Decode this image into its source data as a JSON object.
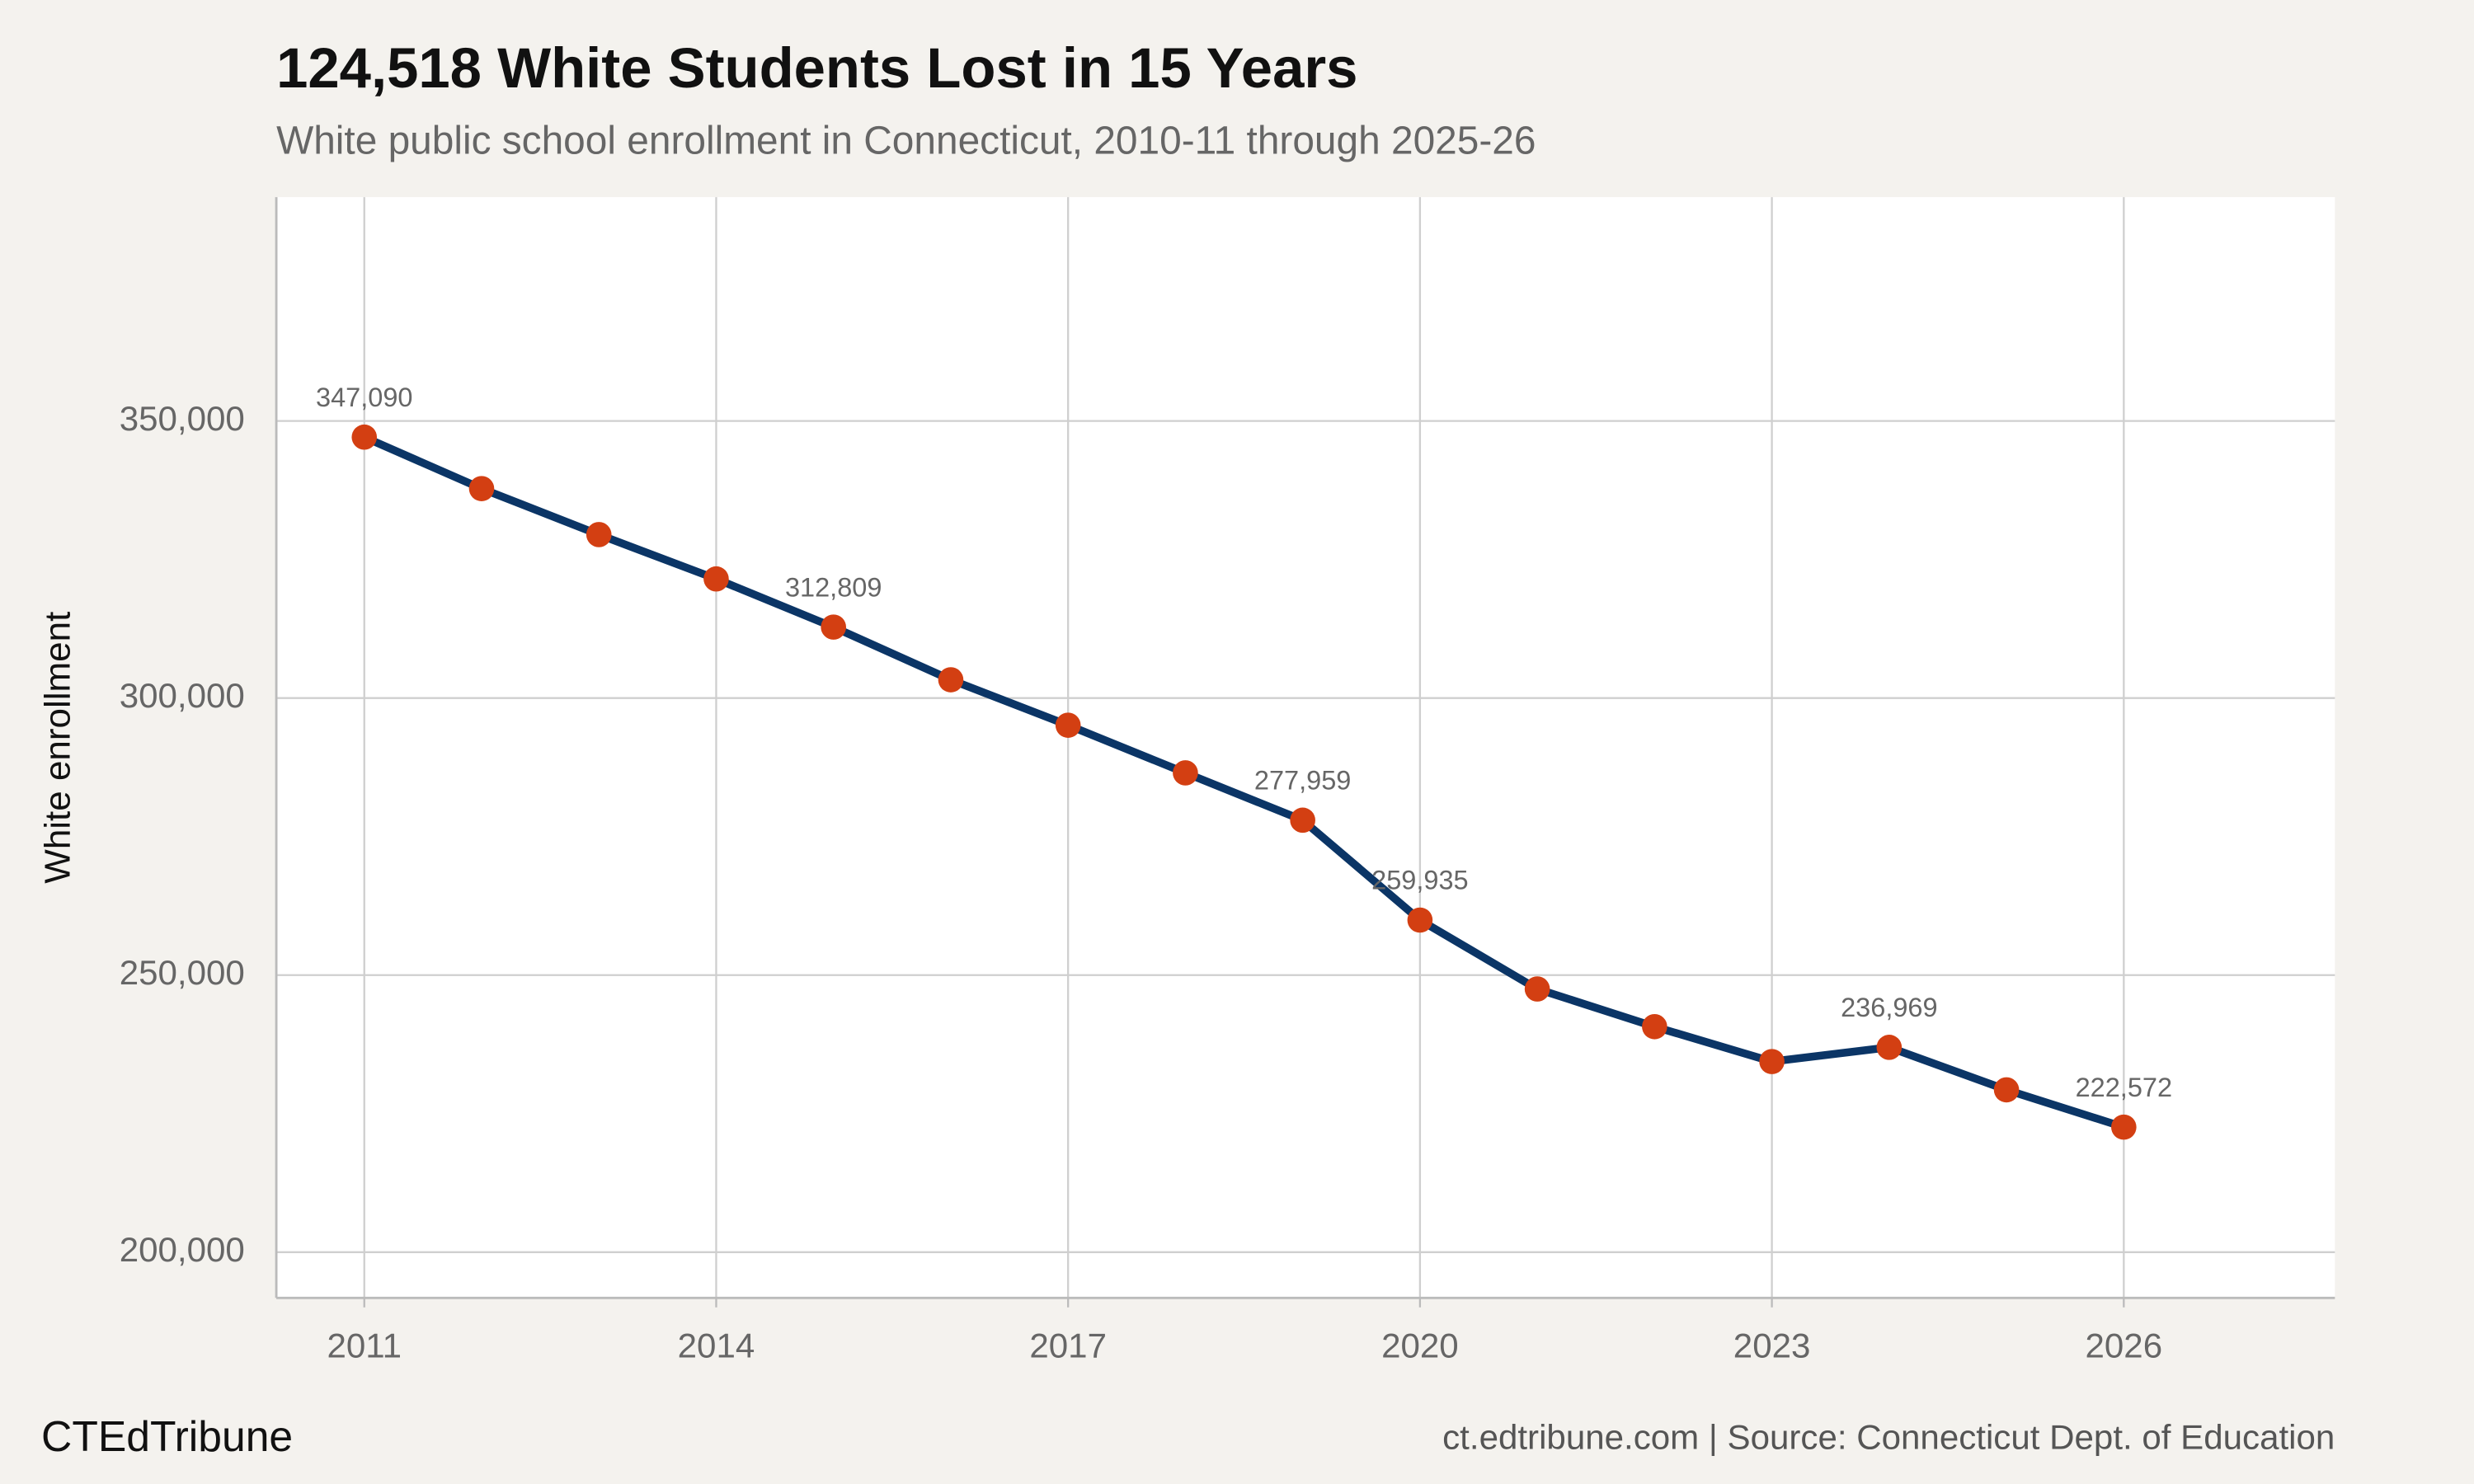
{
  "chart_data": {
    "type": "line",
    "title": "124,518 White Students Lost in 15 Years",
    "subtitle": "White public school enrollment in Connecticut, 2010-11 through 2025-26",
    "y_label": "White enrollment",
    "brand": "CTEdTribune",
    "source": "ct.edtribune.com | Source: Connecticut Dept. of Education",
    "x": [
      2011,
      2012,
      2013,
      2014,
      2015,
      2016,
      2017,
      2018,
      2019,
      2020,
      2021,
      2022,
      2023,
      2024,
      2025,
      2026
    ],
    "values": [
      347090,
      337800,
      329500,
      321500,
      312809,
      303300,
      295100,
      286500,
      277959,
      259935,
      247500,
      240700,
      234400,
      236969,
      229300,
      222572
    ],
    "value_labels": [
      "347,090",
      null,
      null,
      null,
      "312,809",
      null,
      null,
      null,
      "277,959",
      "259,935",
      null,
      null,
      null,
      "236,969",
      null,
      "222,572"
    ],
    "color": "#0b3566",
    "point_color": "#d33f12",
    "xlim": [
      2010.25,
      2027.8
    ],
    "xticks": [
      2011,
      2014,
      2017,
      2020,
      2023,
      2026
    ],
    "ylim": [
      191750,
      390400
    ],
    "yticks": [
      {
        "value": 200000,
        "label": "200,000"
      },
      {
        "value": 250000,
        "label": "250,000"
      },
      {
        "value": 300000,
        "label": "300,000"
      },
      {
        "value": 350000,
        "label": "350,000"
      }
    ],
    "grid": true
  }
}
